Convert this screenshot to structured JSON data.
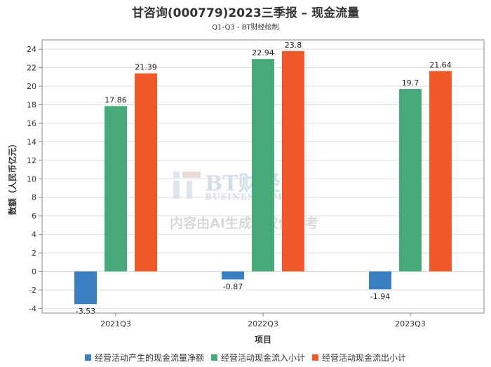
{
  "chart_data": {
    "type": "bar",
    "title": "甘咨询(000779)2023三季报 – 现金流量",
    "subtitle": "Q1-Q3 - BT财经绘制",
    "xlabel": "项目",
    "ylabel": "数额（人民币亿元）",
    "ylim": [
      -4.5,
      25
    ],
    "yticks": [
      -4,
      -2,
      0,
      2,
      4,
      6,
      8,
      10,
      12,
      14,
      16,
      18,
      20,
      22,
      24
    ],
    "grid": true,
    "legend_position": "bottom",
    "categories": [
      "2021Q3",
      "2022Q3",
      "2023Q3"
    ],
    "series": [
      {
        "name": "经营活动产生的现金流量净额",
        "color": "#3a7fc1",
        "values": [
          -3.53,
          -0.87,
          -1.94
        ]
      },
      {
        "name": "经营活动现金流入小计",
        "color": "#46ab78",
        "values": [
          17.86,
          22.94,
          19.7
        ]
      },
      {
        "name": "经营活动现金流出小计",
        "color": "#f05a2a",
        "values": [
          21.39,
          23.8,
          21.64
        ]
      }
    ]
  },
  "watermark": {
    "brand": "BT财经",
    "brand_en": "BUSINESSTIMES",
    "notice": "内容由AI生成，仅供参考"
  }
}
